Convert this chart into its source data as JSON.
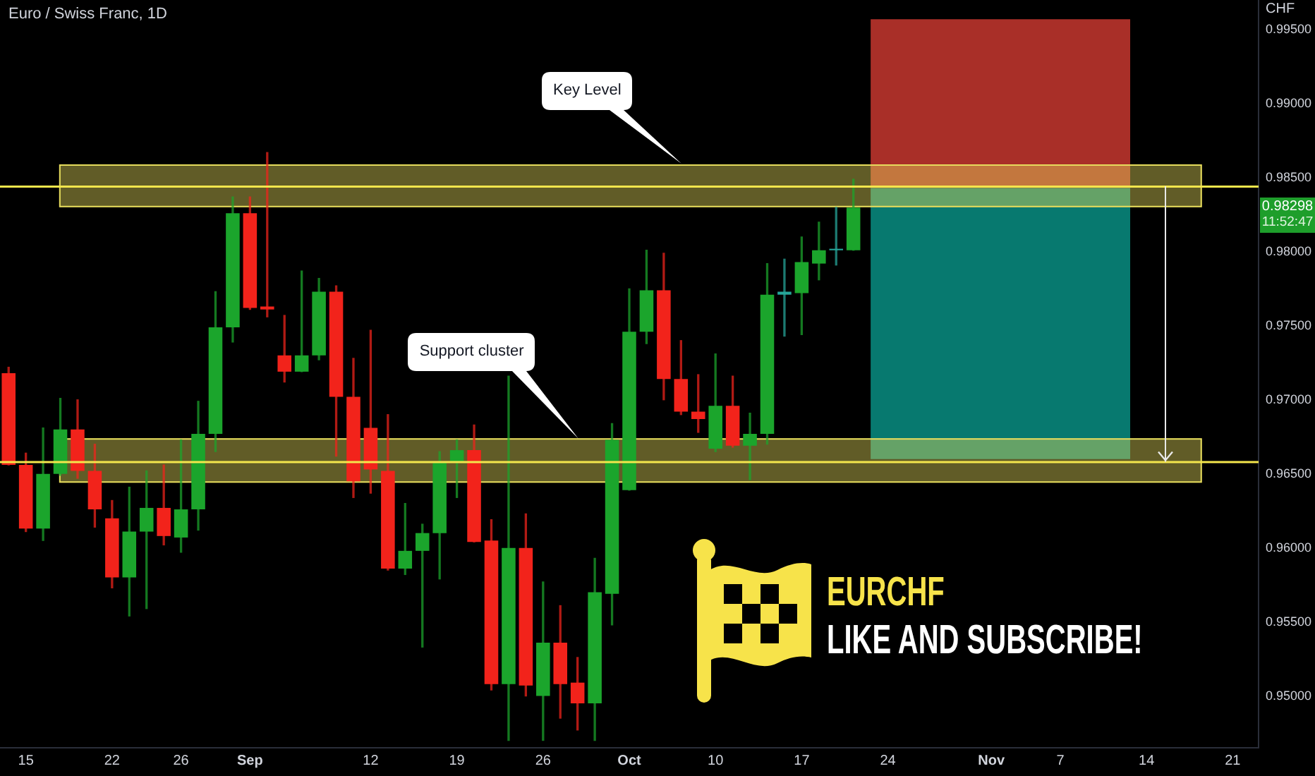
{
  "chart_data": {
    "type": "candlestick",
    "title": "Euro / Swiss Franc, 1D",
    "ylabel": "CHF",
    "categories": [
      null,
      "15",
      null,
      null,
      null,
      null,
      "22",
      null,
      null,
      null,
      "26",
      null,
      null,
      null,
      "Sep",
      null,
      null,
      null,
      null,
      null,
      null,
      "12",
      null,
      null,
      null,
      null,
      "19",
      null,
      null,
      null,
      null,
      "26",
      null,
      null,
      null,
      null,
      "Oct",
      null,
      null,
      null,
      null,
      "10",
      null,
      null,
      null,
      null,
      "17",
      null,
      null,
      null,
      null,
      "24",
      null,
      null,
      null,
      null,
      null,
      "Nov",
      null,
      null,
      null,
      "7",
      null,
      null,
      null,
      null,
      "14",
      null,
      null,
      null,
      null,
      "21",
      null
    ],
    "ohlc": [
      [
        0.9718,
        0.9722,
        0.9656,
        0.9656
      ],
      [
        0.9656,
        0.9664,
        0.9611,
        0.9613
      ],
      [
        0.9613,
        0.9681,
        0.9605,
        0.965
      ],
      [
        0.965,
        0.9701,
        0.9649,
        0.968
      ],
      [
        0.968,
        0.97,
        0.9647,
        0.9652
      ],
      [
        0.9652,
        0.967,
        0.9614,
        0.9626
      ],
      [
        0.962,
        0.9632,
        0.9573,
        0.958
      ],
      [
        0.958,
        0.9641,
        0.9554,
        0.9611
      ],
      [
        0.9611,
        0.9652,
        0.9559,
        0.9627
      ],
      [
        0.9627,
        0.9656,
        0.9602,
        0.9608
      ],
      [
        0.9607,
        0.9673,
        0.9597,
        0.9626
      ],
      [
        0.9626,
        0.9699,
        0.9612,
        0.9677
      ],
      [
        0.9677,
        0.9773,
        0.9665,
        0.9749
      ],
      [
        0.9749,
        0.9837,
        0.9739,
        0.9826
      ],
      [
        0.9826,
        0.9837,
        0.9761,
        0.9762
      ],
      [
        0.9763,
        0.9867,
        0.9756,
        0.9761
      ],
      [
        0.973,
        0.9757,
        0.9712,
        0.9719
      ],
      [
        0.9719,
        0.9787,
        0.9719,
        0.973
      ],
      [
        0.973,
        0.9782,
        0.9727,
        0.9773
      ],
      [
        0.9773,
        0.9777,
        0.9662,
        0.9702
      ],
      [
        0.9702,
        0.9728,
        0.9634,
        0.9645
      ],
      [
        0.9681,
        0.9747,
        0.9637,
        0.9653
      ],
      [
        0.9652,
        0.969,
        0.9585,
        0.9586
      ],
      [
        0.9586,
        0.963,
        0.9582,
        0.9598
      ],
      [
        0.9598,
        0.9616,
        0.9533,
        0.961
      ],
      [
        0.961,
        0.9665,
        0.9579,
        0.9658
      ],
      [
        0.9658,
        0.9673,
        0.9634,
        0.9666
      ],
      [
        0.9666,
        0.9683,
        0.9604,
        0.9604
      ],
      [
        0.9605,
        0.9619,
        0.9504,
        0.9508
      ],
      [
        0.9508,
        0.9716,
        0.947,
        0.96
      ],
      [
        0.96,
        0.9623,
        0.95,
        0.9507
      ],
      [
        0.95,
        0.9577,
        0.947,
        0.9536
      ],
      [
        0.9536,
        0.9561,
        0.9485,
        0.9508
      ],
      [
        0.9509,
        0.9526,
        0.9477,
        0.9495
      ],
      [
        0.9495,
        0.9593,
        0.947,
        0.957
      ],
      [
        0.9569,
        0.9684,
        0.9548,
        0.9673
      ],
      [
        0.9639,
        0.9775,
        0.9639,
        0.9746
      ],
      [
        0.9746,
        0.9801,
        0.9738,
        0.9774
      ],
      [
        0.9774,
        0.9799,
        0.97,
        0.9714
      ],
      [
        0.9714,
        0.974,
        0.969,
        0.9692
      ],
      [
        0.9692,
        0.9717,
        0.9678,
        0.9687
      ],
      [
        0.9667,
        0.9731,
        0.9665,
        0.9696
      ],
      [
        0.9696,
        0.9716,
        0.9668,
        0.9669
      ],
      [
        0.9669,
        0.9691,
        0.9646,
        0.9677
      ],
      [
        0.9677,
        0.9792,
        0.967,
        0.9771
      ],
      [
        0.9771,
        0.9795,
        0.9743,
        0.9773
      ],
      [
        0.9772,
        0.981,
        0.9744,
        0.9793
      ],
      [
        0.9792,
        0.982,
        0.9781,
        0.9801
      ],
      [
        0.9801,
        0.983,
        0.9791,
        0.9802
      ],
      [
        0.9801,
        0.9849,
        0.9801,
        0.98298
      ],
      null,
      null,
      null,
      null,
      null,
      null,
      null,
      null,
      null,
      null,
      null,
      null,
      null,
      null,
      null,
      null,
      null,
      null,
      null,
      null,
      null,
      null,
      null
    ],
    "colors": [
      "#f2231b",
      "#f2231b",
      "#1ba52c",
      "#1ba52c",
      "#f2231b",
      "#f2231b",
      "#f2231b",
      "#1ba52c",
      "#1ba52c",
      "#f2231b",
      "#1ba52c",
      "#1ba52c",
      "#1ba52c",
      "#1ba52c",
      "#f2231b",
      "#f2231b",
      "#f2231b",
      "#1ba52c",
      "#1ba52c",
      "#f2231b",
      "#f2231b",
      "#f2231b",
      "#f2231b",
      "#1ba52c",
      "#1ba52c",
      "#1ba52c",
      "#1ba52c",
      "#f2231b",
      "#f2231b",
      "#1ba52c",
      "#f2231b",
      "#1ba52c",
      "#f2231b",
      "#f2231b",
      "#1ba52c",
      "#1ba52c",
      "#1ba52c",
      "#1ba52c",
      "#f2231b",
      "#f2231b",
      "#f2231b",
      "#1ba52c",
      "#f2231b",
      "#1ba52c",
      "#1ba52c",
      "#26a69a",
      "#1ba52c",
      "#1ba52c",
      "#26a69a",
      "#1ba52c",
      null,
      null,
      null,
      null,
      null,
      null,
      null,
      null,
      null,
      null,
      null,
      null,
      null,
      null,
      null,
      null,
      null,
      null,
      null,
      null,
      null,
      null,
      null
    ],
    "ylim": [
      0.9465,
      0.997
    ],
    "yticks": [
      {
        "value": 0.95,
        "label": "0.95000"
      },
      {
        "value": 0.955,
        "label": "0.95500"
      },
      {
        "value": 0.96,
        "label": "0.96000"
      },
      {
        "value": 0.965,
        "label": "0.96500"
      },
      {
        "value": 0.97,
        "label": "0.97000"
      },
      {
        "value": 0.975,
        "label": "0.97500"
      },
      {
        "value": 0.98,
        "label": "0.98000"
      },
      {
        "value": 0.985,
        "label": "0.98500"
      },
      {
        "value": 0.99,
        "label": "0.99000"
      },
      {
        "value": 0.995,
        "label": "0.99500"
      }
    ],
    "bands": [
      {
        "axis": "y",
        "from": 0.9843,
        "to": 0.9957,
        "color": "#b2322a"
      },
      {
        "axis": "y",
        "from": 0.966,
        "to": 0.9843,
        "color": "#077f75"
      },
      {
        "axis": "y",
        "from": 0.983,
        "to": 0.9859,
        "color": "#e6dc5c"
      },
      {
        "axis": "y",
        "from": 0.9644,
        "to": 0.9674,
        "color": "#e6dc5c"
      }
    ],
    "ref_lines": [
      {
        "axis": "y",
        "value": 0.9844,
        "color": "#f4e64c"
      },
      {
        "axis": "y",
        "value": 0.9658,
        "color": "#f4e64c"
      }
    ],
    "annotations": [
      "Key Level",
      "Support cluster",
      "0.98298",
      "11:52:47",
      "EURCHF",
      "LIKE AND SUBSCRIBE!"
    ]
  }
}
